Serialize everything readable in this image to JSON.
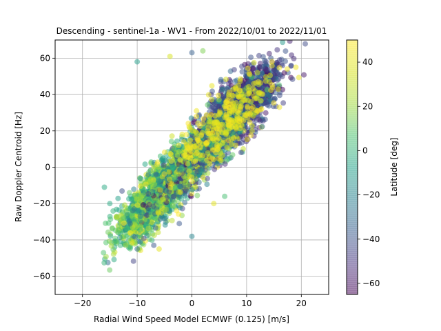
{
  "chart_data": {
    "type": "scatter",
    "title": "Descending - sentinel-1a - WV1 - From 2022/10/01 to 2022/11/01",
    "xlabel": "Radial Wind Speed Model ECMWF (0.125) [m/s]",
    "ylabel": "Raw Doppler Centroid [Hz]",
    "xlim": [
      -25,
      25
    ],
    "ylim": [
      -70,
      70
    ],
    "xticks": [
      -20,
      -10,
      0,
      10,
      20
    ],
    "yticks": [
      -60,
      -40,
      -20,
      0,
      20,
      40,
      60
    ],
    "grid": true,
    "colorbar": {
      "label": "Latitude [deg]",
      "range": [
        -65,
        50
      ],
      "ticks": [
        -60,
        -40,
        -20,
        0,
        20,
        40
      ],
      "colormap": "viridis",
      "alpha": 0.5
    },
    "trend": {
      "slope": 3.0,
      "intercept": 2.5
    },
    "cluster_note_south": {
      "x": [
        -15,
        0
      ],
      "y": [
        -45,
        0
      ],
      "latitude": [
        -10,
        30
      ]
    },
    "cluster_note_north": {
      "x": [
        0,
        17
      ],
      "y": [
        10,
        68
      ],
      "latitude": [
        -60,
        -30
      ]
    },
    "outliers": [
      {
        "x": -10,
        "y": 58,
        "lat": -10
      },
      {
        "x": -4,
        "y": 61,
        "lat": 35
      },
      {
        "x": 0,
        "y": 63,
        "lat": -35
      },
      {
        "x": 2,
        "y": 64,
        "lat": 15
      },
      {
        "x": -15,
        "y": -20,
        "lat": -5
      },
      {
        "x": -16,
        "y": -11,
        "lat": -5
      },
      {
        "x": 6,
        "y": -16,
        "lat": 5
      },
      {
        "x": 4,
        "y": -20,
        "lat": 40
      },
      {
        "x": -10,
        "y": -45,
        "lat": -30
      },
      {
        "x": -6,
        "y": -45,
        "lat": 40
      },
      {
        "x": 0,
        "y": -38,
        "lat": -20
      },
      {
        "x": 16,
        "y": 33,
        "lat": 45
      },
      {
        "x": 19,
        "y": 55,
        "lat": 45
      },
      {
        "x": 11,
        "y": 20,
        "lat": 40
      }
    ]
  }
}
